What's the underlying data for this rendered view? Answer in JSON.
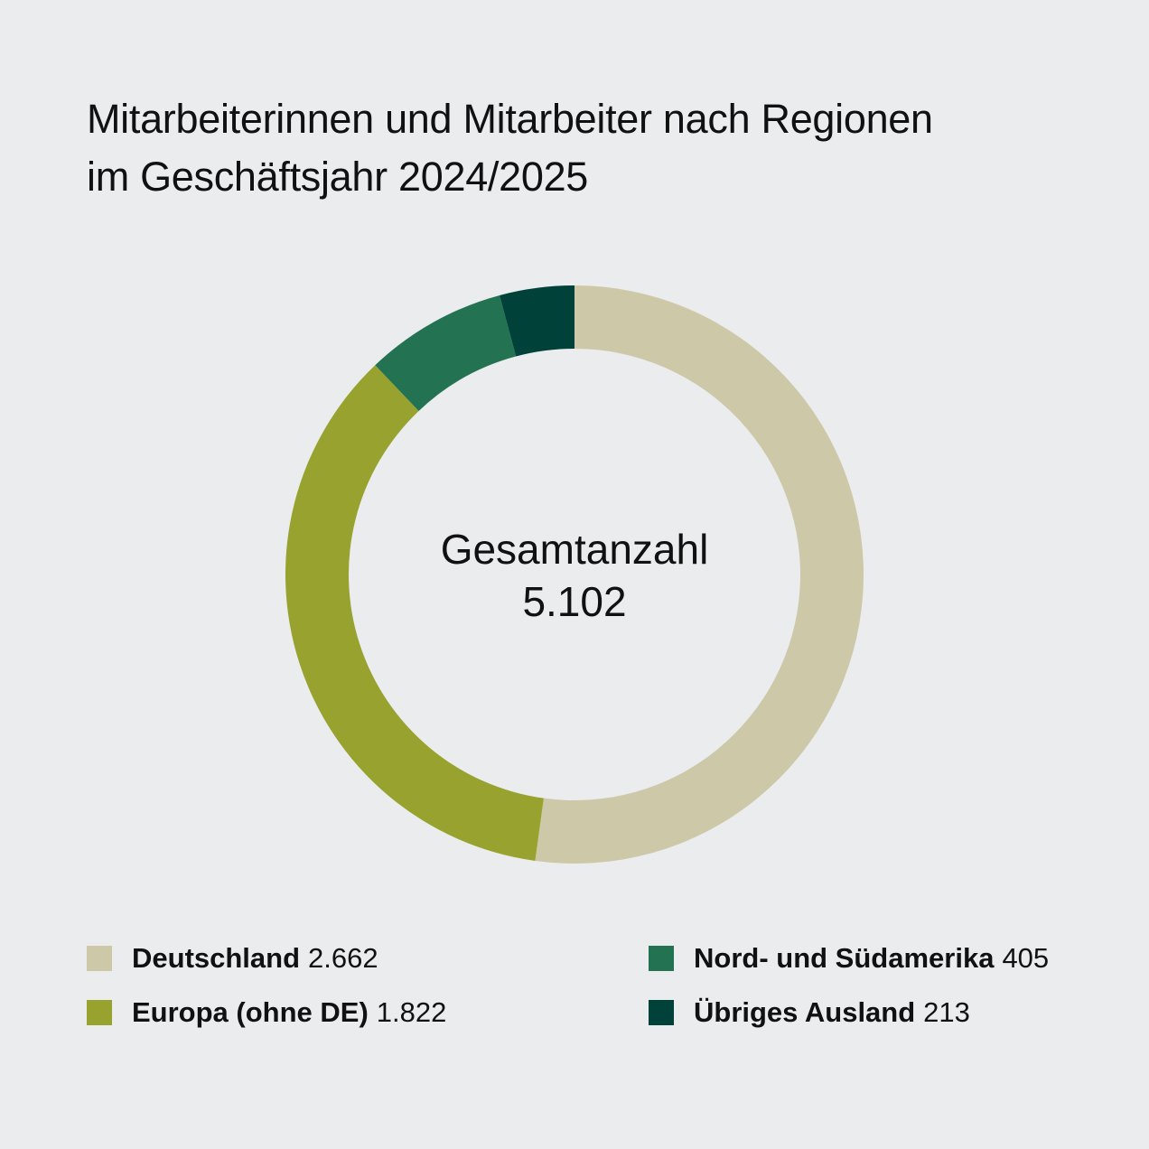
{
  "chart_data": {
    "type": "pie",
    "variant": "donut",
    "title_lines": [
      "Mitarbeiterinnen und Mitarbeiter nach Regionen",
      "im Geschäftsjahr 2024/2025"
    ],
    "center_label": "Gesamtanzahl",
    "total_label": "5.102",
    "total": 5102,
    "slices": [
      {
        "name": "Deutschland",
        "value": 2662,
        "value_label": "2.662",
        "color": "#cdc9a8"
      },
      {
        "name": "Europa (ohne DE)",
        "value": 1822,
        "value_label": "1.822",
        "color": "#97a22f"
      },
      {
        "name": "Nord- und Südamerika",
        "value": 405,
        "value_label": "405",
        "color": "#237252"
      },
      {
        "name": "Übriges Ausland",
        "value": 213,
        "value_label": "213",
        "color": "#00423a"
      }
    ],
    "start_angle": "top",
    "direction": "clockwise",
    "legend_position": "bottom, two columns"
  }
}
